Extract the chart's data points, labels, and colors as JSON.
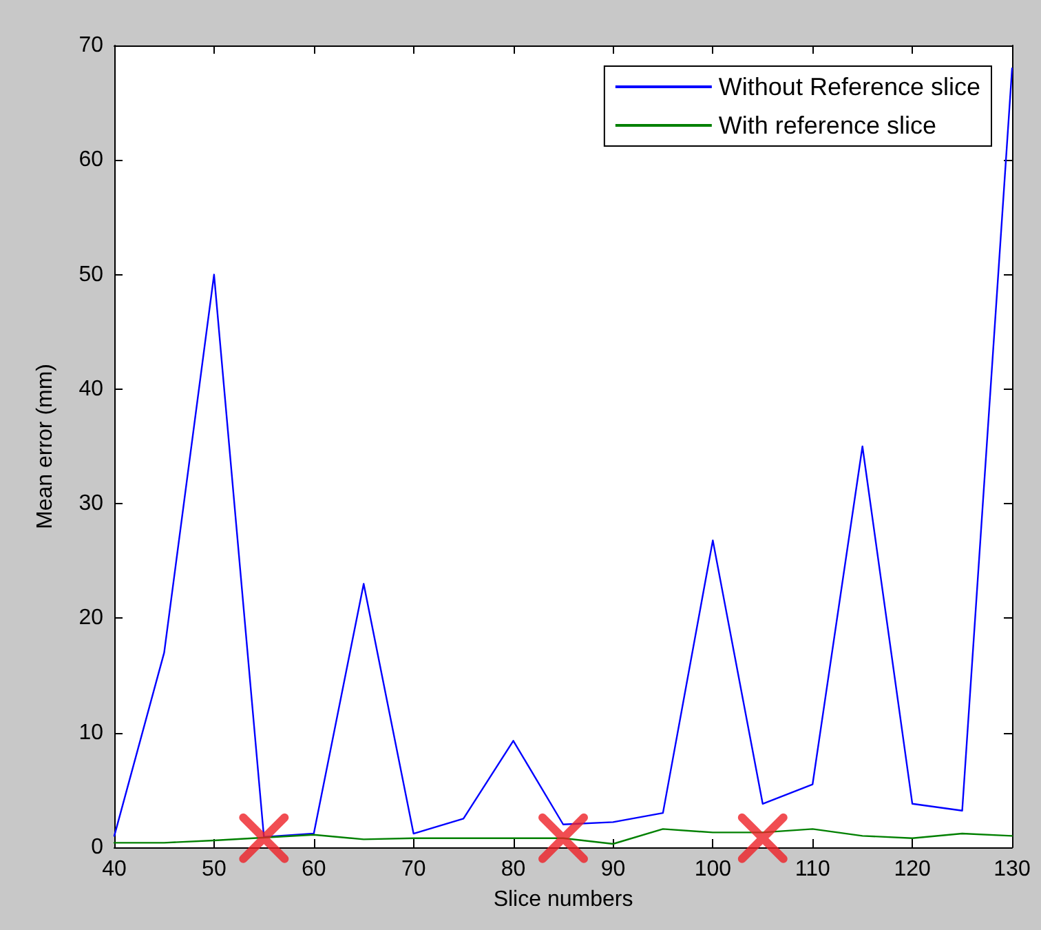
{
  "chart_data": {
    "type": "line",
    "xlabel": "Slice numbers",
    "ylabel": "Mean error (mm)",
    "x": [
      40,
      45,
      50,
      55,
      60,
      65,
      70,
      75,
      80,
      85,
      90,
      95,
      100,
      105,
      110,
      115,
      120,
      125,
      130
    ],
    "series": [
      {
        "name": "Without Reference slice",
        "color": "#0000ff",
        "values": [
          1,
          17,
          50,
          0.9,
          1.2,
          23,
          1.2,
          2.5,
          9.3,
          2,
          2.2,
          3,
          26.8,
          3.8,
          5.5,
          35,
          3.8,
          3.2,
          68
        ]
      },
      {
        "name": "With reference slice",
        "color": "#008000",
        "values": [
          0.4,
          0.4,
          0.6,
          null,
          1.1,
          0.7,
          0.8,
          0.8,
          0.8,
          0.8,
          0.3,
          1.6,
          1.3,
          1.3,
          1.6,
          1,
          0.8,
          1.2,
          1
        ]
      },
      {
        "type": "scatter",
        "marker": "cross",
        "color": "#ee2027",
        "x": [
          55,
          85,
          105
        ],
        "values": [
          0.8,
          0.8,
          0.8
        ]
      }
    ],
    "xlim": [
      40,
      130
    ],
    "xticks": [
      40,
      50,
      60,
      70,
      80,
      90,
      100,
      110,
      120,
      130
    ],
    "ylim": [
      0,
      70
    ],
    "yticks": [
      0,
      10,
      20,
      30,
      40,
      50,
      60,
      70
    ],
    "grid": false,
    "legend": "top right",
    "marker": "none",
    "line_style": "solid"
  }
}
